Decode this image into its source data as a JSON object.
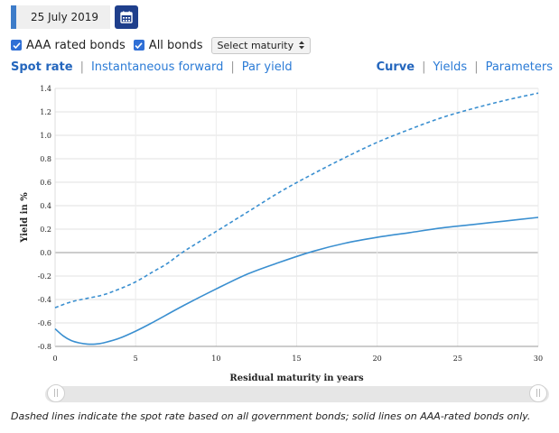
{
  "date_picker": {
    "value": "25 July 2019",
    "icon": "calendar-icon"
  },
  "options": {
    "aaa_label": "AAA rated bonds",
    "aaa_checked": true,
    "all_label": "All bonds",
    "all_checked": true,
    "maturity_select": "Select maturity"
  },
  "tabs_left": [
    {
      "label": "Spot rate",
      "active": true
    },
    {
      "label": "Instantaneous forward",
      "active": false
    },
    {
      "label": "Par yield",
      "active": false
    }
  ],
  "tabs_right": [
    {
      "label": "Curve",
      "active": true
    },
    {
      "label": "Yields",
      "active": false
    },
    {
      "label": "Parameters",
      "active": false
    }
  ],
  "colors": {
    "accent": "#3d7cc9",
    "line": "#3a8fd0",
    "link": "#2b7bd6"
  },
  "chart_data": {
    "type": "line",
    "title": "",
    "xlabel": "Residual maturity in years",
    "ylabel": "Yield in %",
    "xlim": [
      0,
      30
    ],
    "ylim": [
      -0.8,
      1.4
    ],
    "xticks": [
      0,
      5,
      10,
      15,
      20,
      25,
      30
    ],
    "yticks": [
      -0.8,
      -0.6,
      -0.4,
      -0.2,
      0.0,
      0.2,
      0.4,
      0.6,
      0.8,
      1.0,
      1.2,
      1.4
    ],
    "ytick_labels": [
      "-0.8",
      "-0.6",
      "-0.4",
      "-0.2",
      "0.0",
      "0.2",
      "0.4",
      "0.6",
      "0.8",
      "1.0",
      "1.2",
      "1.4"
    ],
    "grid": true,
    "series": [
      {
        "style": "dashed",
        "x": [
          0,
          1,
          2,
          3,
          4,
          5,
          6,
          7,
          8,
          10,
          12,
          14,
          16,
          18,
          20,
          22,
          24,
          26,
          28,
          30
        ],
        "values": [
          -0.47,
          -0.42,
          -0.39,
          -0.36,
          -0.31,
          -0.25,
          -0.17,
          -0.09,
          0.01,
          0.18,
          0.35,
          0.52,
          0.67,
          0.81,
          0.94,
          1.05,
          1.15,
          1.23,
          1.3,
          1.36
        ]
      },
      {
        "style": "solid",
        "x": [
          0,
          0.5,
          1,
          1.5,
          2,
          2.5,
          3,
          4,
          5,
          6,
          8,
          10,
          12,
          14,
          16,
          18,
          20,
          22,
          24,
          26,
          28,
          30
        ],
        "values": [
          -0.65,
          -0.71,
          -0.75,
          -0.77,
          -0.78,
          -0.78,
          -0.77,
          -0.73,
          -0.67,
          -0.6,
          -0.45,
          -0.31,
          -0.18,
          -0.08,
          0.01,
          0.08,
          0.13,
          0.17,
          0.21,
          0.24,
          0.27,
          0.3
        ]
      }
    ]
  },
  "slider": {
    "range": [
      0,
      30
    ],
    "left_handle_icon": "grip-icon",
    "right_handle_icon": "grip-icon"
  },
  "footnote": "Dashed lines indicate the spot rate based on all government bonds; solid lines on AAA-rated bonds only."
}
